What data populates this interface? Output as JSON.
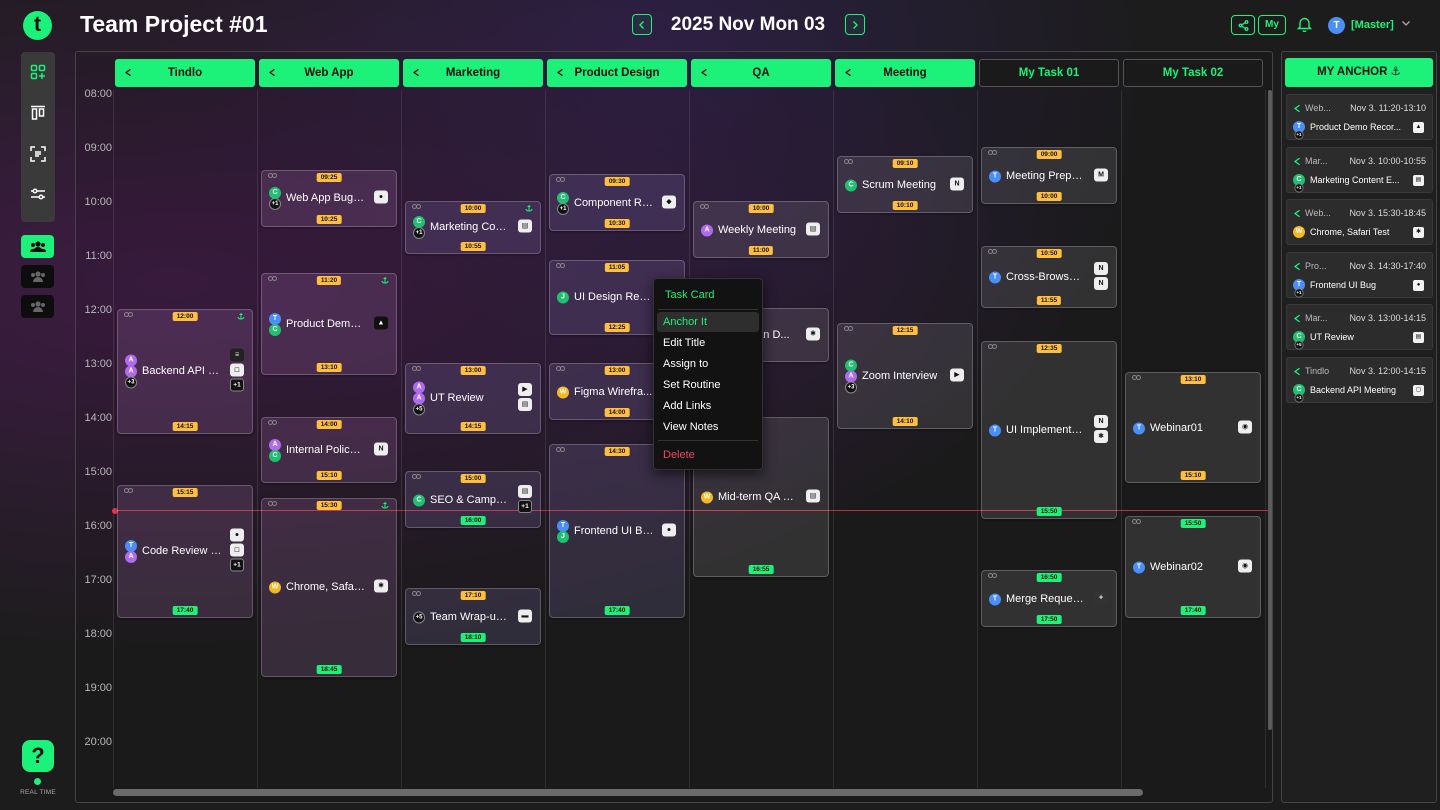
{
  "app": {
    "logo": "t",
    "realtime_label": "REAL TIME",
    "help_label": "?"
  },
  "header": {
    "title": "Team Project #01",
    "date": "2025 Nov Mon 03",
    "my_label": "My",
    "user_initial": "T",
    "user_role": "[Master]"
  },
  "rail_tools": [
    "dashboard-icon",
    "board-icon",
    "scan-icon",
    "sliders-icon"
  ],
  "team_buttons": [
    {
      "state": "active"
    },
    {
      "state": "idle"
    },
    {
      "state": "idle"
    }
  ],
  "time_labels": [
    "08:00",
    "09:00",
    "10:00",
    "11:00",
    "12:00",
    "13:00",
    "14:00",
    "15:00",
    "16:00",
    "17:00",
    "18:00",
    "19:00",
    "20:00"
  ],
  "columns": [
    {
      "label": "Tindlo",
      "kind": "project"
    },
    {
      "label": "Web App",
      "kind": "project"
    },
    {
      "label": "Marketing",
      "kind": "project"
    },
    {
      "label": "Product Design",
      "kind": "project"
    },
    {
      "label": "QA",
      "kind": "project"
    },
    {
      "label": "Meeting",
      "kind": "project"
    },
    {
      "label": "My Task 01",
      "kind": "mine"
    },
    {
      "label": "My Task 02",
      "kind": "mine"
    }
  ],
  "colors": {
    "accent": "#1cf27a",
    "badge": "#ffbf3c",
    "now_line": "#c62a3e",
    "danger": "#e84a5f"
  },
  "tasks": [
    {
      "col": 0,
      "title": "Backend API M...",
      "start": "12:00",
      "end": "14:15",
      "sb": "y",
      "eb": "y",
      "anchored": true,
      "avatars": [
        {
          "t": "A",
          "c": "#b06af0"
        },
        {
          "t": "A",
          "c": "#b06af0"
        },
        {
          "t": "+3",
          "c": "more"
        }
      ],
      "apps": [
        {
          "t": "≡",
          "c": "#222"
        },
        {
          "t": "◻",
          "c": "#eee"
        },
        {
          "t": "+1",
          "c": "more"
        }
      ]
    },
    {
      "col": 0,
      "title": "Code Review S...",
      "start": "15:15",
      "end": "17:40",
      "sb": "y",
      "eb": "g",
      "avatars": [
        {
          "t": "T",
          "c": "#4a8ff5"
        },
        {
          "t": "A",
          "c": "#b06af0"
        }
      ],
      "apps": [
        {
          "t": "●",
          "c": "#eee"
        },
        {
          "t": "◻",
          "c": "#eee"
        },
        {
          "t": "+1",
          "c": "more"
        }
      ]
    },
    {
      "col": 1,
      "title": "Web App BugFix",
      "start": "09:25",
      "end": "10:25",
      "sb": "y",
      "eb": "y",
      "avatars": [
        {
          "t": "C",
          "c": "#20c071"
        },
        {
          "t": "+1",
          "c": "more"
        }
      ],
      "apps": [
        {
          "t": "●",
          "c": "#eee"
        }
      ]
    },
    {
      "col": 1,
      "title": "Product Demo ...",
      "start": "11:20",
      "end": "13:10",
      "sb": "y",
      "eb": "y",
      "anchored": true,
      "avatars": [
        {
          "t": "T",
          "c": "#4a8ff5"
        },
        {
          "t": "C",
          "c": "#20c071"
        }
      ],
      "apps": [
        {
          "t": "▲",
          "c": "#111"
        }
      ]
    },
    {
      "col": 1,
      "title": "Internal Policy ...",
      "start": "14:00",
      "end": "15:10",
      "sb": "y",
      "eb": "y",
      "avatars": [
        {
          "t": "A",
          "c": "#b06af0"
        },
        {
          "t": "C",
          "c": "#20c071"
        }
      ],
      "apps": [
        {
          "t": "N",
          "c": "#eee"
        }
      ]
    },
    {
      "col": 1,
      "title": "Chrome, Safari...",
      "start": "15:30",
      "end": "18:45",
      "sb": "y",
      "eb": "g",
      "anchored": true,
      "avatars": [
        {
          "t": "W",
          "c": "#f5b820"
        }
      ],
      "apps": [
        {
          "t": "✱",
          "c": "#eee"
        }
      ]
    },
    {
      "col": 2,
      "title": "Marketing Con...",
      "start": "10:00",
      "end": "10:55",
      "sb": "y",
      "eb": "y",
      "anchored": true,
      "avatars": [
        {
          "t": "C",
          "c": "#20c071"
        },
        {
          "t": "+1",
          "c": "more"
        }
      ],
      "apps": [
        {
          "t": "▤",
          "c": "#eee"
        }
      ]
    },
    {
      "col": 2,
      "title": "UT Review",
      "start": "13:00",
      "end": "14:15",
      "sb": "y",
      "eb": "y",
      "avatars": [
        {
          "t": "A",
          "c": "#b06af0"
        },
        {
          "t": "A",
          "c": "#b06af0"
        },
        {
          "t": "+5",
          "c": "more"
        }
      ],
      "apps": [
        {
          "t": "▶",
          "c": "#eee"
        },
        {
          "t": "▤",
          "c": "#eee"
        }
      ]
    },
    {
      "col": 2,
      "title": "SEO & Campai...",
      "start": "15:00",
      "end": "16:00",
      "sb": "y",
      "eb": "g",
      "avatars": [
        {
          "t": "C",
          "c": "#20c071"
        }
      ],
      "apps": [
        {
          "t": "▤",
          "c": "#eee"
        },
        {
          "t": "+1",
          "c": "more"
        }
      ]
    },
    {
      "col": 2,
      "title": "Team Wrap-up...",
      "start": "17:10",
      "end": "18:10",
      "sb": "y",
      "eb": "g",
      "avatars": [
        {
          "t": "+5",
          "c": "more"
        }
      ],
      "apps": [
        {
          "t": "▬",
          "c": "#eee"
        }
      ]
    },
    {
      "col": 3,
      "title": "Component Re...",
      "start": "09:30",
      "end": "10:30",
      "sb": "y",
      "eb": "y",
      "avatars": [
        {
          "t": "C",
          "c": "#20c071"
        },
        {
          "t": "+1",
          "c": "more"
        }
      ],
      "apps": [
        {
          "t": "◆",
          "c": "#eee"
        }
      ]
    },
    {
      "col": 3,
      "title": "UI Design Revi...",
      "start": "11:05",
      "end": "12:25",
      "sb": "y",
      "eb": "y",
      "avatars": [
        {
          "t": "J",
          "c": "#20c071"
        }
      ],
      "apps": []
    },
    {
      "col": 3,
      "title": "Figma Wirefra...",
      "start": "13:00",
      "end": "14:00",
      "sb": "y",
      "eb": "y",
      "avatars": [
        {
          "t": "W",
          "c": "#f5b820"
        }
      ],
      "apps": []
    },
    {
      "col": 3,
      "title": "Frontend UI Bug",
      "start": "14:30",
      "end": "17:40",
      "sb": "y",
      "eb": "g",
      "avatars": [
        {
          "t": "T",
          "c": "#4a8ff5"
        },
        {
          "t": "J",
          "c": "#20c071"
        }
      ],
      "apps": [
        {
          "t": "●",
          "c": "#eee"
        }
      ]
    },
    {
      "col": 4,
      "title": "Weekly Meeting",
      "start": "10:00",
      "end": "11:00",
      "sb": "y",
      "eb": "y",
      "avatars": [
        {
          "t": "A",
          "c": "#b06af0"
        }
      ],
      "apps": [
        {
          "t": "▤",
          "c": "#eee"
        }
      ]
    },
    {
      "col": 4,
      "title": "...an D...",
      "start": "",
      "end": "",
      "hide_sb": true,
      "avatars": [],
      "apps": [
        {
          "t": "✱",
          "c": "#eee"
        }
      ],
      "cover": true
    },
    {
      "col": 4,
      "title": "Mid-term QA R...",
      "start": "",
      "end": "16:55",
      "hide_sb": true,
      "eb": "g",
      "avatars": [
        {
          "t": "W",
          "c": "#f5b820"
        }
      ],
      "apps": [
        {
          "t": "▤",
          "c": "#eee"
        }
      ]
    },
    {
      "col": 5,
      "title": "Scrum Meeting",
      "start": "09:10",
      "end": "10:10",
      "sb": "y",
      "eb": "y",
      "avatars": [
        {
          "t": "C",
          "c": "#20c071"
        }
      ],
      "apps": [
        {
          "t": "N",
          "c": "#eee"
        }
      ]
    },
    {
      "col": 5,
      "title": "Zoom Interview",
      "start": "12:15",
      "end": "14:10",
      "sb": "y",
      "eb": "y",
      "avatars": [
        {
          "t": "C",
          "c": "#20c071"
        },
        {
          "t": "A",
          "c": "#b06af0"
        },
        {
          "t": "+3",
          "c": "more"
        }
      ],
      "apps": [
        {
          "t": "▶",
          "c": "#eee"
        }
      ]
    },
    {
      "col": 6,
      "title": "Meeting Prepa...",
      "start": "09:00",
      "end": "10:00",
      "sb": "y",
      "eb": "y",
      "avatars": [
        {
          "t": "T",
          "c": "#4a8ff5"
        }
      ],
      "apps": [
        {
          "t": "M",
          "c": "#eee"
        }
      ]
    },
    {
      "col": 6,
      "title": "Cross-Browser...",
      "start": "10:50",
      "end": "11:55",
      "sb": "y",
      "eb": "y",
      "avatars": [
        {
          "t": "T",
          "c": "#4a8ff5"
        }
      ],
      "apps": [
        {
          "t": "N",
          "c": "#eee"
        },
        {
          "t": "N",
          "c": "#eee"
        }
      ]
    },
    {
      "col": 6,
      "title": "UI Implementat...",
      "start": "12:35",
      "end": "15:50",
      "sb": "y",
      "eb": "g",
      "avatars": [
        {
          "t": "T",
          "c": "#4a8ff5"
        }
      ],
      "apps": [
        {
          "t": "N",
          "c": "#eee"
        },
        {
          "t": "✱",
          "c": "#eee"
        }
      ]
    },
    {
      "col": 6,
      "title": "Merge Requests",
      "start": "16:50",
      "end": "17:50",
      "sb": "g",
      "eb": "g",
      "avatars": [
        {
          "t": "T",
          "c": "#4a8ff5"
        }
      ],
      "apps": [
        {
          "t": "+",
          "c": "#333"
        }
      ]
    },
    {
      "col": 7,
      "title": "Webinar01",
      "start": "13:10",
      "end": "15:10",
      "sb": "y",
      "eb": "y",
      "avatars": [
        {
          "t": "T",
          "c": "#4a8ff5"
        }
      ],
      "apps": [
        {
          "t": "◉",
          "c": "#eee"
        }
      ]
    },
    {
      "col": 7,
      "title": "Webinar02",
      "start": "15:50",
      "end": "17:40",
      "sb": "g",
      "eb": "g",
      "avatars": [
        {
          "t": "T",
          "c": "#4a8ff5"
        }
      ],
      "apps": [
        {
          "t": "◉",
          "c": "#eee"
        }
      ]
    }
  ],
  "context_menu": {
    "title": "Task Card",
    "items": [
      {
        "label": "Anchor It",
        "highlight": true
      },
      {
        "label": "Edit Title"
      },
      {
        "label": "Assign to"
      },
      {
        "label": "Set Routine"
      },
      {
        "label": "Add Links"
      },
      {
        "label": "View Notes"
      },
      {
        "label": "Delete",
        "danger": true
      }
    ]
  },
  "anchor_panel": {
    "title": "MY ANCHOR ⚓",
    "items": [
      {
        "project": "Web...",
        "time": "Nov 3. 11:20-13:10",
        "title": "Product Demo Recor...",
        "av": {
          "t": "T",
          "c": "#4a8ff5"
        },
        "more": "+1",
        "app": "▲"
      },
      {
        "project": "Mar...",
        "time": "Nov 3. 10:00-10:55",
        "title": "Marketing Content E...",
        "av": {
          "t": "C",
          "c": "#20c071"
        },
        "more": "+1",
        "app": "▤"
      },
      {
        "project": "Web...",
        "time": "Nov 3. 15:30-18:45",
        "title": "Chrome, Safari Test",
        "av": {
          "t": "W",
          "c": "#f5b820"
        },
        "more": "",
        "app": "✱"
      },
      {
        "project": "Pro...",
        "time": "Nov 3. 14:30-17:40",
        "title": "Frontend UI Bug",
        "av": {
          "t": "T",
          "c": "#4a8ff5"
        },
        "more": "+1",
        "app": "●"
      },
      {
        "project": "Mar...",
        "time": "Nov 3. 13:00-14:15",
        "title": "UT Review",
        "av": {
          "t": "C",
          "c": "#20c071"
        },
        "more": "+5",
        "app": "▤"
      },
      {
        "project": "Tindlo",
        "time": "Nov 3. 12:00-14:15",
        "title": "Backend API Meeting",
        "av": {
          "t": "C",
          "c": "#20c071"
        },
        "more": "+1",
        "app": "◻"
      }
    ]
  }
}
